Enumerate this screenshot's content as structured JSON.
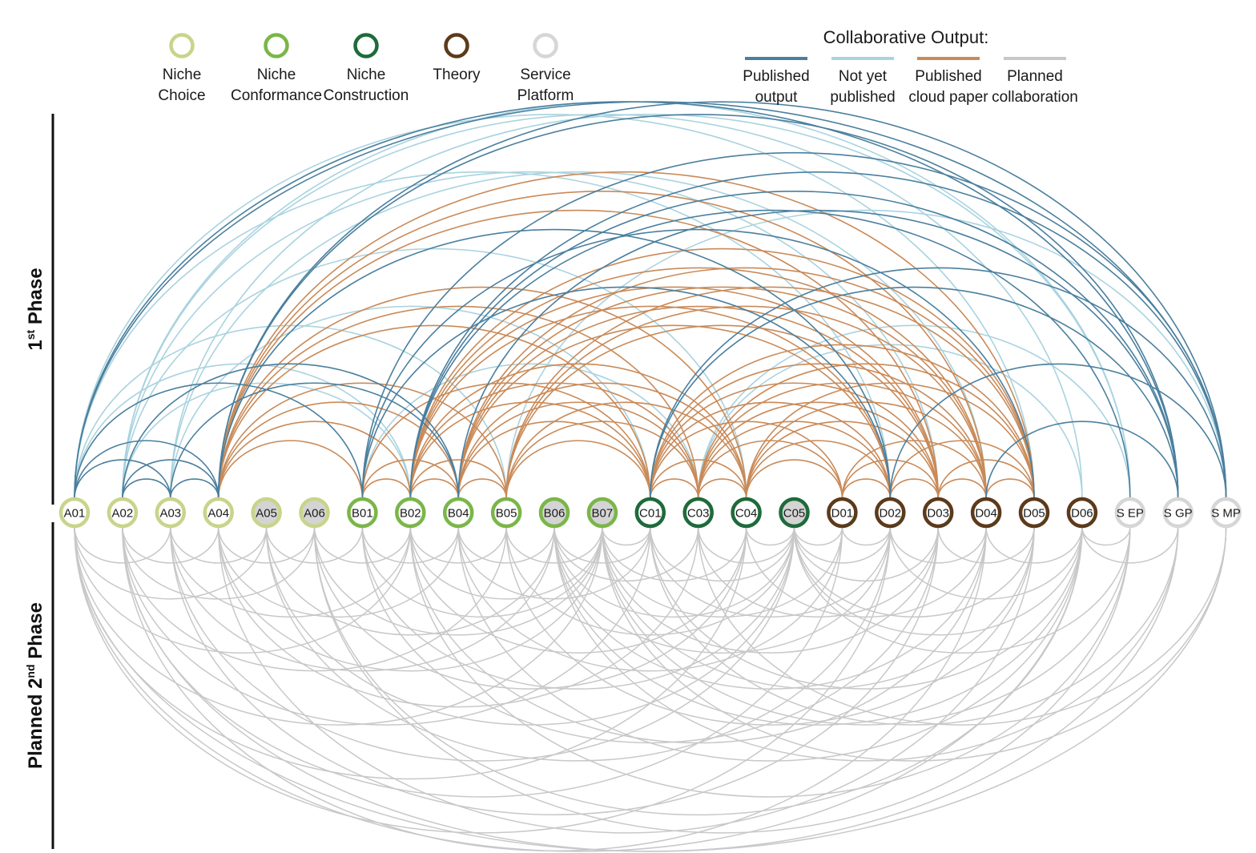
{
  "categories": [
    {
      "key": "nc",
      "label_line1": "Niche",
      "label_line2": "Choice",
      "color": "#c9d48a",
      "fill": "#ffffff"
    },
    {
      "key": "ncf",
      "label_line1": "Niche",
      "label_line2": "Conformance",
      "color": "#7ab648",
      "fill": "#ffffff"
    },
    {
      "key": "nco",
      "label_line1": "Niche",
      "label_line2": "Construction",
      "color": "#1e6b3a",
      "fill": "#ffffff"
    },
    {
      "key": "th",
      "label_line1": "Theory",
      "label_line2": "",
      "color": "#5c3a1a",
      "fill": "#ffffff"
    },
    {
      "key": "sp",
      "label_line1": "Service",
      "label_line2": "Platform",
      "color": "#d6d6d6",
      "fill": "#ffffff"
    }
  ],
  "output_legend": {
    "title": "Collaborative Output:",
    "items": [
      {
        "key": "pub",
        "label_line1": "Published",
        "label_line2": "output",
        "color": "#4a7f9e"
      },
      {
        "key": "nyp",
        "label_line1": "Not yet",
        "label_line2": "published",
        "color": "#a9d3df"
      },
      {
        "key": "pcp",
        "label_line1": "Published",
        "label_line2": "cloud paper",
        "color": "#c98a58"
      },
      {
        "key": "plan",
        "label_line1": "Planned",
        "label_line2": "collaboration",
        "color": "#c8c8c8"
      }
    ]
  },
  "phase_labels": {
    "first_main": "1",
    "first_sup": "st",
    "first_rest": " Phase",
    "second_pre": "Planned 2",
    "second_sup": "nd",
    "second_rest": " Phase"
  },
  "nodes": [
    {
      "id": "A01",
      "cat": "nc",
      "shaded": false
    },
    {
      "id": "A02",
      "cat": "nc",
      "shaded": false
    },
    {
      "id": "A03",
      "cat": "nc",
      "shaded": false
    },
    {
      "id": "A04",
      "cat": "nc",
      "shaded": false
    },
    {
      "id": "A05",
      "cat": "nc",
      "shaded": true
    },
    {
      "id": "A06",
      "cat": "nc",
      "shaded": true
    },
    {
      "id": "B01",
      "cat": "ncf",
      "shaded": false
    },
    {
      "id": "B02",
      "cat": "ncf",
      "shaded": false
    },
    {
      "id": "B04",
      "cat": "ncf",
      "shaded": false
    },
    {
      "id": "B05",
      "cat": "ncf",
      "shaded": false
    },
    {
      "id": "B06",
      "cat": "ncf",
      "shaded": true
    },
    {
      "id": "B07",
      "cat": "ncf",
      "shaded": true
    },
    {
      "id": "C01",
      "cat": "nco",
      "shaded": false
    },
    {
      "id": "C03",
      "cat": "nco",
      "shaded": false
    },
    {
      "id": "C04",
      "cat": "nco",
      "shaded": false
    },
    {
      "id": "C05",
      "cat": "nco",
      "shaded": true
    },
    {
      "id": "D01",
      "cat": "th",
      "shaded": false
    },
    {
      "id": "D02",
      "cat": "th",
      "shaded": false
    },
    {
      "id": "D03",
      "cat": "th",
      "shaded": false
    },
    {
      "id": "D04",
      "cat": "th",
      "shaded": false
    },
    {
      "id": "D05",
      "cat": "th",
      "shaded": false
    },
    {
      "id": "D06",
      "cat": "th",
      "shaded": false
    },
    {
      "id": "S EP",
      "cat": "sp",
      "shaded": false
    },
    {
      "id": "S GP",
      "cat": "sp",
      "shaded": false
    },
    {
      "id": "S MP",
      "cat": "sp",
      "shaded": false
    }
  ],
  "shaded_fill": "#d4d4d4",
  "links_phase1": [
    [
      "A01",
      "A03",
      "pub"
    ],
    [
      "A01",
      "A04",
      "pub"
    ],
    [
      "A01",
      "B01",
      "pub"
    ],
    [
      "A01",
      "B02",
      "nyp"
    ],
    [
      "A01",
      "B05",
      "nyp"
    ],
    [
      "A01",
      "D02",
      "nyp"
    ],
    [
      "A01",
      "D05",
      "nyp"
    ],
    [
      "A01",
      "S GP",
      "pub"
    ],
    [
      "A01",
      "S MP",
      "pub"
    ],
    [
      "A02",
      "A03",
      "pub"
    ],
    [
      "A02",
      "A04",
      "pub"
    ],
    [
      "A02",
      "B02",
      "nyp"
    ],
    [
      "A02",
      "B04",
      "pub"
    ],
    [
      "A02",
      "C04",
      "nyp"
    ],
    [
      "A02",
      "D03",
      "nyp"
    ],
    [
      "A02",
      "D06",
      "nyp"
    ],
    [
      "A02",
      "S EP",
      "nyp"
    ],
    [
      "A03",
      "A04",
      "pub"
    ],
    [
      "A03",
      "B04",
      "pub"
    ],
    [
      "A03",
      "C01",
      "nyp"
    ],
    [
      "A03",
      "D04",
      "nyp"
    ],
    [
      "A03",
      "S EP",
      "nyp"
    ],
    [
      "A04",
      "B01",
      "pcp"
    ],
    [
      "A04",
      "B02",
      "pcp"
    ],
    [
      "A04",
      "B04",
      "pcp"
    ],
    [
      "A04",
      "B05",
      "pcp"
    ],
    [
      "A04",
      "C01",
      "pcp"
    ],
    [
      "A04",
      "C03",
      "pcp"
    ],
    [
      "A04",
      "C04",
      "pcp"
    ],
    [
      "A04",
      "D02",
      "pub"
    ],
    [
      "A04",
      "D03",
      "pcp"
    ],
    [
      "A04",
      "D04",
      "pcp"
    ],
    [
      "A04",
      "D05",
      "pcp"
    ],
    [
      "A04",
      "S GP",
      "pub"
    ],
    [
      "A04",
      "S MP",
      "pub"
    ],
    [
      "B01",
      "B02",
      "pcp"
    ],
    [
      "B01",
      "B04",
      "pcp"
    ],
    [
      "B01",
      "C01",
      "pcp"
    ],
    [
      "B01",
      "C03",
      "nyp"
    ],
    [
      "B01",
      "D02",
      "pub"
    ],
    [
      "B01",
      "D05",
      "pub"
    ],
    [
      "B01",
      "S MP",
      "pub"
    ],
    [
      "B02",
      "B04",
      "pcp"
    ],
    [
      "B02",
      "B05",
      "pcp"
    ],
    [
      "B02",
      "C01",
      "pcp"
    ],
    [
      "B02",
      "C03",
      "pcp"
    ],
    [
      "B02",
      "C04",
      "pcp"
    ],
    [
      "B02",
      "D02",
      "pcp"
    ],
    [
      "B02",
      "D03",
      "pcp"
    ],
    [
      "B02",
      "D04",
      "pcp"
    ],
    [
      "B02",
      "D05",
      "pcp"
    ],
    [
      "B02",
      "S EP",
      "pub"
    ],
    [
      "B02",
      "S GP",
      "pub"
    ],
    [
      "B02",
      "S MP",
      "pub"
    ],
    [
      "B04",
      "B05",
      "pcp"
    ],
    [
      "B04",
      "C01",
      "pcp"
    ],
    [
      "B04",
      "C03",
      "pcp"
    ],
    [
      "B04",
      "C04",
      "pcp"
    ],
    [
      "B04",
      "D02",
      "pcp"
    ],
    [
      "B04",
      "D03",
      "pcp"
    ],
    [
      "B04",
      "D04",
      "pcp"
    ],
    [
      "B04",
      "D05",
      "pcp"
    ],
    [
      "B04",
      "S GP",
      "pub"
    ],
    [
      "B05",
      "C01",
      "pcp"
    ],
    [
      "B05",
      "C03",
      "pcp"
    ],
    [
      "B05",
      "C04",
      "pcp"
    ],
    [
      "B05",
      "D03",
      "pcp"
    ],
    [
      "B05",
      "D04",
      "pcp"
    ],
    [
      "B05",
      "D05",
      "pcp"
    ],
    [
      "B05",
      "S MP",
      "nyp"
    ],
    [
      "C01",
      "C03",
      "pcp"
    ],
    [
      "C01",
      "C04",
      "pcp"
    ],
    [
      "C01",
      "D01",
      "pcp"
    ],
    [
      "C01",
      "D02",
      "pcp"
    ],
    [
      "C01",
      "D03",
      "pcp"
    ],
    [
      "C01",
      "D04",
      "pcp"
    ],
    [
      "C01",
      "D05",
      "pcp"
    ],
    [
      "C01",
      "S GP",
      "pub"
    ],
    [
      "C01",
      "S MP",
      "pub"
    ],
    [
      "C03",
      "C04",
      "pcp"
    ],
    [
      "C03",
      "D01",
      "pcp"
    ],
    [
      "C03",
      "D02",
      "pcp"
    ],
    [
      "C03",
      "D03",
      "pcp"
    ],
    [
      "C03",
      "D04",
      "pcp"
    ],
    [
      "C03",
      "D05",
      "pcp"
    ],
    [
      "C03",
      "S EP",
      "nyp"
    ],
    [
      "C03",
      "D06",
      "nyp"
    ],
    [
      "C04",
      "D01",
      "pcp"
    ],
    [
      "C04",
      "D02",
      "pcp"
    ],
    [
      "C04",
      "D03",
      "pcp"
    ],
    [
      "C04",
      "D04",
      "pcp"
    ],
    [
      "C04",
      "D05",
      "pcp"
    ],
    [
      "D01",
      "D02",
      "pcp"
    ],
    [
      "D01",
      "D03",
      "pcp"
    ],
    [
      "D01",
      "D04",
      "pcp"
    ],
    [
      "D02",
      "D03",
      "pcp"
    ],
    [
      "D02",
      "D05",
      "pcp"
    ],
    [
      "D03",
      "D04",
      "pcp"
    ],
    [
      "D03",
      "D05",
      "pcp"
    ],
    [
      "D04",
      "D05",
      "pcp"
    ],
    [
      "D02",
      "S MP",
      "pub"
    ],
    [
      "D04",
      "S GP",
      "pub"
    ]
  ],
  "links_phase2": [
    [
      "A01",
      "A03"
    ],
    [
      "A01",
      "A05"
    ],
    [
      "A01",
      "B02"
    ],
    [
      "A01",
      "B07"
    ],
    [
      "A01",
      "C04"
    ],
    [
      "A01",
      "D02"
    ],
    [
      "A01",
      "D06"
    ],
    [
      "A01",
      "S MP"
    ],
    [
      "A02",
      "A04"
    ],
    [
      "A02",
      "A06"
    ],
    [
      "A02",
      "B05"
    ],
    [
      "A02",
      "C01"
    ],
    [
      "A02",
      "D01"
    ],
    [
      "A02",
      "D04"
    ],
    [
      "A02",
      "S GP"
    ],
    [
      "A03",
      "A05"
    ],
    [
      "A03",
      "B02"
    ],
    [
      "A03",
      "B06"
    ],
    [
      "A03",
      "C05"
    ],
    [
      "A03",
      "D03"
    ],
    [
      "A04",
      "A06"
    ],
    [
      "A04",
      "B04"
    ],
    [
      "A04",
      "B07"
    ],
    [
      "A04",
      "C03"
    ],
    [
      "A04",
      "D05"
    ],
    [
      "A05",
      "B01"
    ],
    [
      "A05",
      "B06"
    ],
    [
      "A05",
      "C05"
    ],
    [
      "A05",
      "D02"
    ],
    [
      "A06",
      "B02"
    ],
    [
      "A06",
      "B07"
    ],
    [
      "A06",
      "C04"
    ],
    [
      "A06",
      "D06"
    ],
    [
      "A06",
      "S EP"
    ],
    [
      "B01",
      "B04"
    ],
    [
      "B01",
      "B07"
    ],
    [
      "B01",
      "C05"
    ],
    [
      "B01",
      "D03"
    ],
    [
      "B02",
      "B05"
    ],
    [
      "B02",
      "B07"
    ],
    [
      "B02",
      "C04"
    ],
    [
      "B02",
      "D04"
    ],
    [
      "B02",
      "S EP"
    ],
    [
      "B04",
      "B06"
    ],
    [
      "B04",
      "C01"
    ],
    [
      "B04",
      "D01"
    ],
    [
      "B04",
      "D06"
    ],
    [
      "B05",
      "B07"
    ],
    [
      "B05",
      "C05"
    ],
    [
      "B05",
      "D05"
    ],
    [
      "B06",
      "C01"
    ],
    [
      "B06",
      "C03"
    ],
    [
      "B06",
      "C05"
    ],
    [
      "B06",
      "D02"
    ],
    [
      "B06",
      "D04"
    ],
    [
      "B06",
      "D06"
    ],
    [
      "B06",
      "S GP"
    ],
    [
      "B07",
      "C01"
    ],
    [
      "B07",
      "C04"
    ],
    [
      "B07",
      "D01"
    ],
    [
      "B07",
      "D03"
    ],
    [
      "B07",
      "D05"
    ],
    [
      "B07",
      "S EP"
    ],
    [
      "B07",
      "S MP"
    ],
    [
      "C01",
      "C05"
    ],
    [
      "C01",
      "D02"
    ],
    [
      "C01",
      "D06"
    ],
    [
      "C01",
      "S GP"
    ],
    [
      "C03",
      "C05"
    ],
    [
      "C03",
      "D03"
    ],
    [
      "C03",
      "S MP"
    ],
    [
      "C04",
      "C05"
    ],
    [
      "C04",
      "D04"
    ],
    [
      "C05",
      "D01"
    ],
    [
      "C05",
      "D02"
    ],
    [
      "C05",
      "D03"
    ],
    [
      "C05",
      "D05"
    ],
    [
      "C05",
      "D06"
    ],
    [
      "C05",
      "S EP"
    ],
    [
      "D01",
      "D02"
    ],
    [
      "D02",
      "D04"
    ],
    [
      "D02",
      "D06"
    ],
    [
      "D03",
      "D05"
    ],
    [
      "D04",
      "D06"
    ],
    [
      "D06",
      "S EP"
    ],
    [
      "D06",
      "S GP"
    ]
  ]
}
